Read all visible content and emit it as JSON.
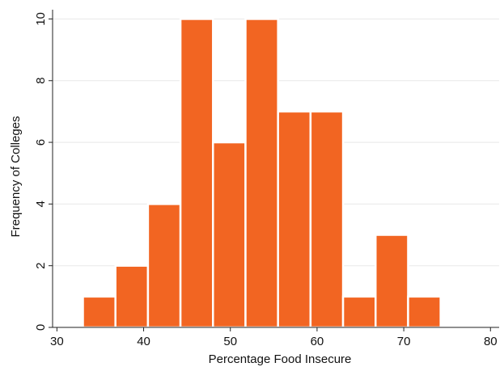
{
  "chart_data": {
    "type": "bar",
    "subtype": "histogram",
    "title": "",
    "xlabel": "Percentage Food Insecure",
    "ylabel": "Frequency of Colleges",
    "bin_width": 3.75,
    "bins": [
      {
        "start": 33.0,
        "end": 36.75,
        "count": 1
      },
      {
        "start": 36.75,
        "end": 40.5,
        "count": 2
      },
      {
        "start": 40.5,
        "end": 44.25,
        "count": 4
      },
      {
        "start": 44.25,
        "end": 48.0,
        "count": 10
      },
      {
        "start": 48.0,
        "end": 51.75,
        "count": 6
      },
      {
        "start": 51.75,
        "end": 55.5,
        "count": 10
      },
      {
        "start": 55.5,
        "end": 59.25,
        "count": 7
      },
      {
        "start": 59.25,
        "end": 63.0,
        "count": 7
      },
      {
        "start": 63.0,
        "end": 66.75,
        "count": 1
      },
      {
        "start": 66.75,
        "end": 70.5,
        "count": 3
      },
      {
        "start": 70.5,
        "end": 74.25,
        "count": 1
      }
    ],
    "xlim": [
      29.5,
      81
    ],
    "ylim": [
      0,
      10.3
    ],
    "xticks": [
      "30",
      "40",
      "50",
      "60",
      "70",
      "80"
    ],
    "yticks": [
      "0",
      "2",
      "4",
      "6",
      "8",
      "10"
    ],
    "grid": true,
    "legend": "none",
    "colors": {
      "bar": "#f26522",
      "bar_edge": "#ffffff",
      "grid": "#e8e8e8",
      "axis": "#222222"
    }
  }
}
